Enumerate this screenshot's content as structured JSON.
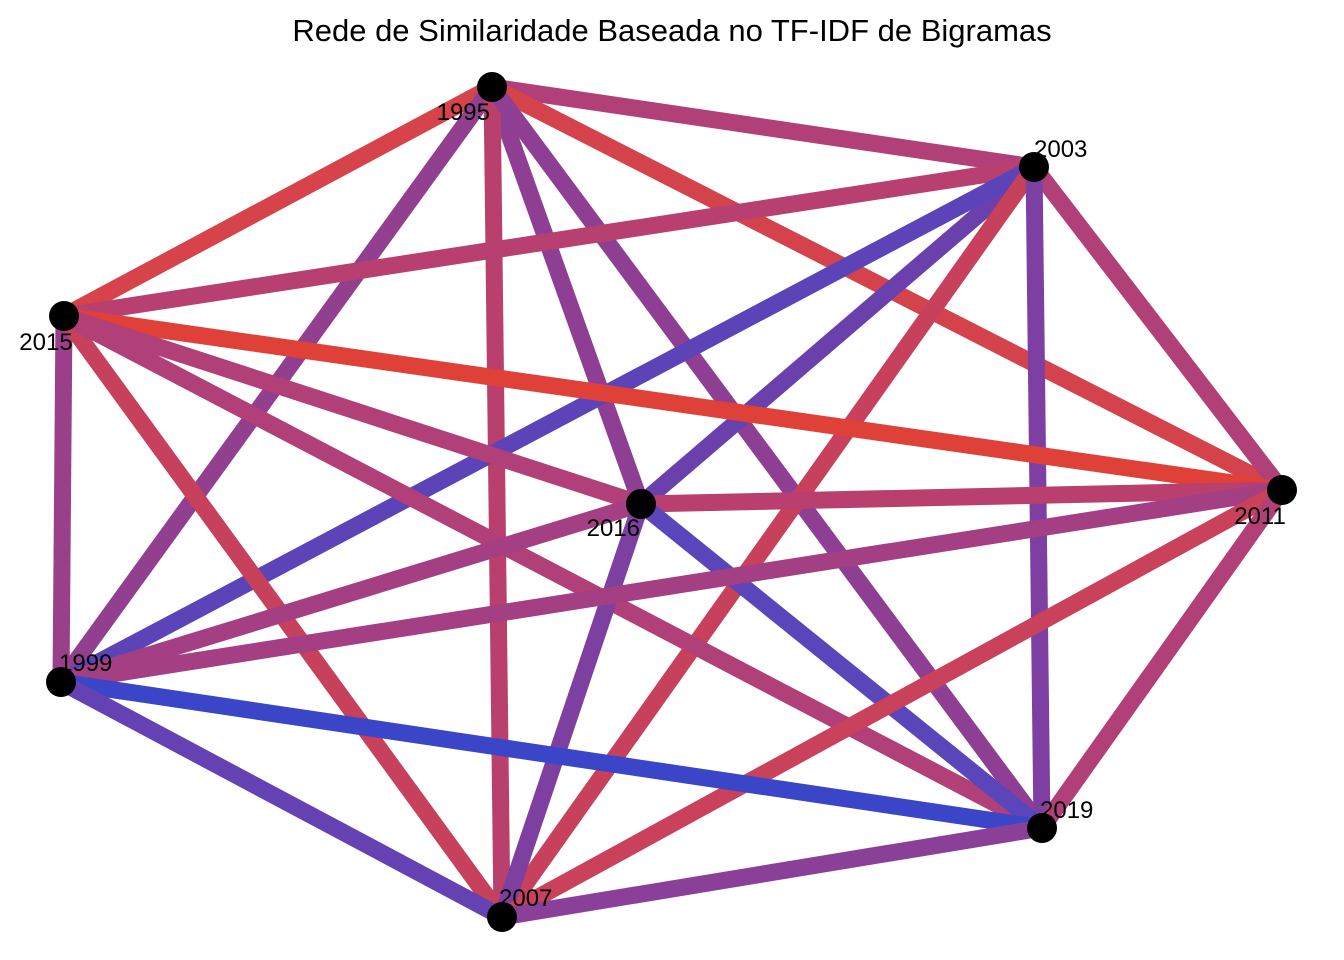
{
  "title": "Rede de Similaridade Baseada no TF-IDF de Bigramas",
  "color_scale": {
    "low": "#3a45c8",
    "high": "#e0423a"
  },
  "nodes": [
    {
      "id": "1995",
      "label": "1995"
    },
    {
      "id": "2003",
      "label": "2003"
    },
    {
      "id": "2015",
      "label": "2015"
    },
    {
      "id": "2016",
      "label": "2016"
    },
    {
      "id": "2011",
      "label": "2011"
    },
    {
      "id": "1999",
      "label": "1999"
    },
    {
      "id": "2019",
      "label": "2019"
    },
    {
      "id": "2007",
      "label": "2007"
    }
  ],
  "edges": [
    {
      "source": "1995",
      "target": "2003",
      "color": "#b13f78"
    },
    {
      "source": "1995",
      "target": "2015",
      "color": "#d6434a"
    },
    {
      "source": "1995",
      "target": "2011",
      "color": "#d4434c"
    },
    {
      "source": "1995",
      "target": "2016",
      "color": "#8f3f93"
    },
    {
      "source": "1995",
      "target": "1999",
      "color": "#933f8f"
    },
    {
      "source": "1995",
      "target": "2007",
      "color": "#b9406c"
    },
    {
      "source": "1995",
      "target": "2019",
      "color": "#8f3f93"
    },
    {
      "source": "2003",
      "target": "2015",
      "color": "#b84070"
    },
    {
      "source": "2003",
      "target": "2011",
      "color": "#b13f78"
    },
    {
      "source": "2003",
      "target": "2016",
      "color": "#6a40ad"
    },
    {
      "source": "2003",
      "target": "1999",
      "color": "#5c43b8"
    },
    {
      "source": "2003",
      "target": "2007",
      "color": "#c7415c"
    },
    {
      "source": "2003",
      "target": "2019",
      "color": "#7d40a2"
    },
    {
      "source": "2015",
      "target": "2011",
      "color": "#df4139"
    },
    {
      "source": "2015",
      "target": "2016",
      "color": "#b13f78"
    },
    {
      "source": "2015",
      "target": "1999",
      "color": "#9a3f89"
    },
    {
      "source": "2015",
      "target": "2007",
      "color": "#c7415c"
    },
    {
      "source": "2015",
      "target": "2019",
      "color": "#b13f78"
    },
    {
      "source": "2016",
      "target": "2011",
      "color": "#b93f6e"
    },
    {
      "source": "2016",
      "target": "1999",
      "color": "#a33f82"
    },
    {
      "source": "2016",
      "target": "2007",
      "color": "#7e40a0"
    },
    {
      "source": "2016",
      "target": "2019",
      "color": "#5a45bb"
    },
    {
      "source": "2011",
      "target": "1999",
      "color": "#a33f82"
    },
    {
      "source": "2011",
      "target": "2007",
      "color": "#c9415a"
    },
    {
      "source": "2011",
      "target": "2019",
      "color": "#b13f78"
    },
    {
      "source": "1999",
      "target": "2019",
      "color": "#3a45c8"
    },
    {
      "source": "1999",
      "target": "2007",
      "color": "#6442b3"
    },
    {
      "source": "2007",
      "target": "2019",
      "color": "#8a3f98"
    }
  ]
}
